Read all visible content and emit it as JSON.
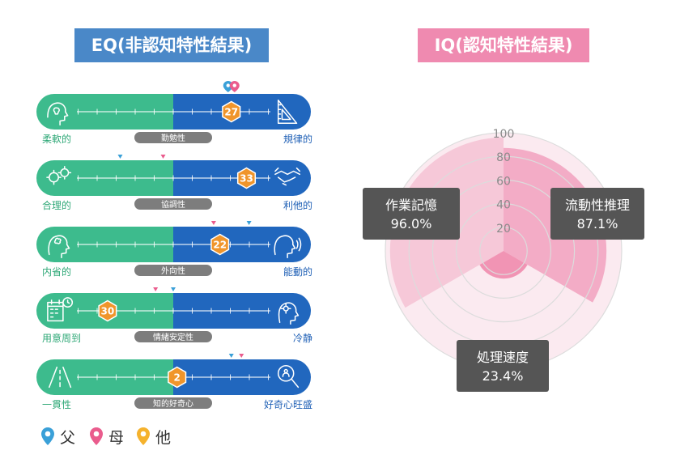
{
  "eq": {
    "title": "EQ(非認知特性結果)",
    "rows": [
      {
        "left": "柔軟的",
        "right": "規律的",
        "center": "勤勉性",
        "score": 27,
        "pos": 0.46,
        "left_icon": "head-lightbulb-icon",
        "right_icon": "triangle-ruler-icon",
        "markers": [
          {
            "who": "父",
            "pos": 0.46
          },
          {
            "who": "母",
            "pos": 0.46
          }
        ]
      },
      {
        "left": "合理的",
        "right": "利他的",
        "center": "協調性",
        "score": 33,
        "pos": 0.58,
        "left_icon": "gears-icon",
        "right_icon": "handshake-icon",
        "markers": [
          {
            "who": "父",
            "pos": -0.42
          },
          {
            "who": "母",
            "pos": -0.08
          }
        ]
      },
      {
        "left": "内省的",
        "right": "能動的",
        "center": "外向性",
        "score": 22,
        "pos": 0.37,
        "left_icon": "head-thinking-icon",
        "right_icon": "head-speaking-icon",
        "markers": [
          {
            "who": "母",
            "pos": 0.32
          },
          {
            "who": "父",
            "pos": 0.6
          }
        ]
      },
      {
        "left": "用意周到",
        "right": "冷静",
        "center": "情緒安定性",
        "score": 30,
        "pos": -0.52,
        "left_icon": "calendar-clock-icon",
        "right_icon": "head-flower-icon",
        "markers": [
          {
            "who": "母",
            "pos": -0.14
          },
          {
            "who": "父",
            "pos": 0.0
          }
        ]
      },
      {
        "left": "一貫性",
        "right": "好奇心旺盛",
        "center": "知的好奇心",
        "score": 2,
        "pos": 0.03,
        "left_icon": "road-icon",
        "right_icon": "magnifier-person-icon",
        "markers": [
          {
            "who": "父",
            "pos": 0.46
          },
          {
            "who": "母",
            "pos": 0.54
          }
        ]
      }
    ],
    "legend": [
      {
        "label": "父",
        "color": "#3aa0d8"
      },
      {
        "label": "母",
        "color": "#ea5c8d"
      },
      {
        "label": "他",
        "color": "#f5b22d"
      }
    ]
  },
  "chart_data": {
    "type": "polar-area",
    "title": "IQ(認知特性結果)",
    "rlim": [
      0,
      100
    ],
    "ticks": [
      20,
      40,
      60,
      80,
      100
    ],
    "grid": true,
    "categories": [
      "作業記憶",
      "流動性推理",
      "処理速度"
    ],
    "values": [
      96.0,
      87.1,
      23.4
    ],
    "value_labels": [
      "96.0%",
      "87.1%",
      "23.4%"
    ]
  },
  "colors": {
    "eq_left": "#3dbb8d",
    "eq_right": "#2167be",
    "eq_title_bg": "#4a88c8",
    "iq_title_bg": "#ef8ab0",
    "score_hex": "#f0952b",
    "label_box": "#555555",
    "left_label": "#2fa877",
    "right_label": "#1e5fb5"
  }
}
